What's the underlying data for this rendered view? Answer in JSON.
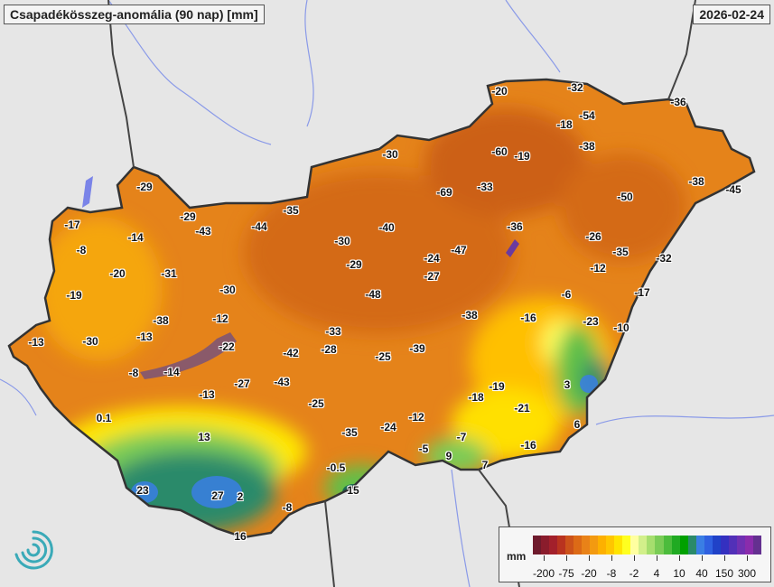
{
  "header": {
    "title": "Csapadékösszeg-anomália (90 nap) [mm]",
    "date": "2026-02-24"
  },
  "map_labels": [
    "-29",
    "-29",
    "-17",
    "-14",
    "-8",
    "-43",
    "-44",
    "-35",
    "-20",
    "-31",
    "-19",
    "-30",
    "-38",
    "-12",
    "-13",
    "-30",
    "-13",
    "-22",
    "-8",
    "-14",
    "-42",
    "-27",
    "-43",
    "-13",
    "-30",
    "-20",
    "-32",
    "-36",
    "-18",
    "-54",
    "-60",
    "-19",
    "-38",
    "-69",
    "-33",
    "-50",
    "-38",
    "-45",
    "-40",
    "-30",
    "-29",
    "-24",
    "-47",
    "-36",
    "-26",
    "-35",
    "-27",
    "-12",
    "-32",
    "-48",
    "-17",
    "-6",
    "-38",
    "-16",
    "-23",
    "-10",
    "-33",
    "-28",
    "-25",
    "-39",
    "-25",
    "-19",
    "-18",
    "-21",
    "3",
    "-12",
    "-24",
    "-35",
    "-16",
    "-7",
    "-5",
    "9",
    "7",
    "6",
    "0.1",
    "13",
    "-0.5",
    "15",
    "23",
    "27",
    "2",
    "-8",
    "16"
  ],
  "legend": {
    "unit": "mm",
    "ticks": [
      "-200",
      "-75",
      "-20",
      "-8",
      "-2",
      "4",
      "10",
      "40",
      "150",
      "300"
    ],
    "colors": [
      "#6e1a2c",
      "#8a1c2c",
      "#a3202b",
      "#b9331f",
      "#cc521a",
      "#dc6a16",
      "#e98218",
      "#f39a10",
      "#fdb000",
      "#ffc600",
      "#ffe400",
      "#ffff20",
      "#ffffa0",
      "#d2ef8a",
      "#a6de6e",
      "#7acc56",
      "#4cbc3c",
      "#20aa22",
      "#00a000",
      "#2a8a6a",
      "#3a7ee4",
      "#2f60e0",
      "#2042c8",
      "#3430c0",
      "#5230b8",
      "#7030b2",
      "#8a2cac",
      "#643090"
    ]
  }
}
